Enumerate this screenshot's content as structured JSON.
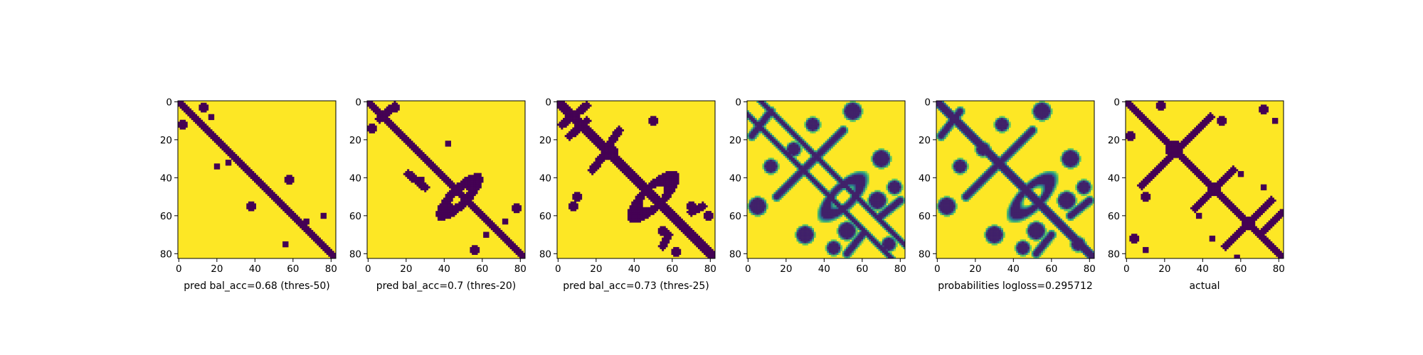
{
  "chart_data": [
    {
      "type": "heatmap",
      "mode": "binary",
      "xlabel": "pred bal_acc=0.68 (thres-50)",
      "xticks": [
        0,
        20,
        40,
        60,
        80
      ],
      "yticks": [
        0,
        20,
        40,
        60,
        80
      ],
      "xlim": [
        0,
        82
      ],
      "ylim": [
        82,
        0
      ],
      "colors": {
        "low": "#440154",
        "high": "#fde725"
      },
      "features": {
        "diagonal_width": 3,
        "offdiag_lines": [],
        "loops": [],
        "arms": [],
        "blobs": [
          [
            12,
            2,
            2
          ],
          [
            3,
            13,
            2
          ],
          [
            8,
            17,
            1
          ],
          [
            34,
            20,
            1
          ],
          [
            32,
            26,
            1
          ],
          [
            55,
            38,
            2
          ],
          [
            41,
            58,
            2
          ],
          [
            63,
            67,
            1
          ],
          [
            75,
            56,
            1
          ],
          [
            60,
            76,
            1
          ]
        ]
      }
    },
    {
      "type": "heatmap",
      "mode": "binary",
      "xlabel": "pred bal_acc=0.7 (thres-20)",
      "xticks": [
        0,
        20,
        40,
        60,
        80
      ],
      "yticks": [
        0,
        20,
        40,
        60,
        80
      ],
      "xlim": [
        0,
        82
      ],
      "ylim": [
        82,
        0
      ],
      "colors": {
        "low": "#440154",
        "high": "#fde725"
      },
      "features": {
        "diagonal_width": 4,
        "offdiag_lines": [],
        "loops": [
          [
            50,
            48,
            11,
            4,
            -0.78
          ]
        ],
        "arms": [
          [
            9,
            6,
            2,
            14
          ],
          [
            38,
            21,
            45,
            30
          ]
        ],
        "blobs": [
          [
            14,
            2,
            2
          ],
          [
            3,
            14,
            2
          ],
          [
            78,
            56,
            2
          ],
          [
            56,
            78,
            2
          ],
          [
            70,
            62,
            1
          ],
          [
            63,
            72,
            1
          ],
          [
            41,
            28,
            1
          ],
          [
            22,
            42,
            1
          ]
        ]
      }
    },
    {
      "type": "heatmap",
      "mode": "binary",
      "xlabel": "pred bal_acc=0.73 (thres-25)",
      "xticks": [
        0,
        20,
        40,
        60,
        80
      ],
      "yticks": [
        0,
        20,
        40,
        60,
        80
      ],
      "xlim": [
        0,
        82
      ],
      "ylim": [
        82,
        0
      ],
      "colors": {
        "low": "#440154",
        "high": "#fde725"
      },
      "features": {
        "diagonal_width": 5,
        "offdiag_lines": [],
        "loops": [
          [
            50,
            50,
            13,
            5,
            -0.78
          ]
        ],
        "arms": [
          [
            12,
            2,
            2,
            15
          ],
          [
            18,
            6,
            10,
            15
          ],
          [
            24,
            26,
            15,
            32
          ],
          [
            28,
            24,
            36,
            18
          ],
          [
            70,
            58,
            76,
            55
          ],
          [
            58,
            70,
            55,
            76
          ]
        ],
        "blobs": [
          [
            10,
            50,
            2
          ],
          [
            50,
            10,
            2
          ],
          [
            68,
            55,
            2
          ],
          [
            55,
            70,
            2
          ],
          [
            60,
            79,
            2
          ],
          [
            79,
            62,
            2
          ],
          [
            27,
            28,
            3
          ],
          [
            55,
            8,
            2
          ]
        ]
      }
    },
    {
      "type": "heatmap",
      "mode": "prob",
      "xlabel": "",
      "xticks": [
        0,
        20,
        40,
        60,
        80
      ],
      "yticks": [
        0,
        20,
        40,
        60,
        80
      ],
      "xlim": [
        0,
        82
      ],
      "ylim": [
        82,
        0
      ],
      "colors": {
        "low": "#440154",
        "high": "#fde725"
      },
      "features": {
        "diagonal_width": 0,
        "offdiag_lines": [
          [
            -7,
            1.2
          ],
          [
            7,
            1.2
          ]
        ],
        "loops": [
          [
            50,
            50,
            12,
            5,
            -0.78
          ]
        ],
        "arms": [
          [
            5,
            12,
            18,
            2
          ],
          [
            15,
            50,
            40,
            25
          ],
          [
            50,
            15,
            25,
            40
          ],
          [
            70,
            60,
            80,
            52
          ],
          [
            60,
            70,
            52,
            80
          ]
        ],
        "blobs": [
          [
            25,
            24,
            3
          ],
          [
            55,
            5,
            4
          ],
          [
            5,
            55,
            4
          ],
          [
            68,
            52,
            4
          ],
          [
            52,
            68,
            4
          ],
          [
            75,
            74,
            3
          ],
          [
            30,
            70,
            4
          ],
          [
            70,
            30,
            4
          ],
          [
            12,
            34,
            3
          ],
          [
            34,
            12,
            3
          ],
          [
            45,
            77,
            3
          ],
          [
            77,
            45,
            3
          ]
        ]
      }
    },
    {
      "type": "heatmap",
      "mode": "prob",
      "xlabel": "probabilities logloss=0.295712",
      "xticks": [
        0,
        20,
        40,
        60,
        80
      ],
      "yticks": [
        0,
        20,
        40,
        60,
        80
      ],
      "xlim": [
        0,
        82
      ],
      "ylim": [
        82,
        0
      ],
      "colors": {
        "low": "#440154",
        "high": "#fde725"
      },
      "features": {
        "diagonal_width": 5,
        "offdiag_lines": [],
        "loops": [
          [
            50,
            50,
            12,
            5,
            -0.78
          ]
        ],
        "arms": [
          [
            5,
            12,
            18,
            2
          ],
          [
            15,
            50,
            40,
            25
          ],
          [
            50,
            15,
            25,
            40
          ],
          [
            70,
            60,
            80,
            52
          ],
          [
            60,
            70,
            52,
            80
          ]
        ],
        "blobs": [
          [
            25,
            24,
            3
          ],
          [
            55,
            5,
            4
          ],
          [
            5,
            55,
            4
          ],
          [
            68,
            52,
            4
          ],
          [
            52,
            68,
            4
          ],
          [
            75,
            74,
            3
          ],
          [
            30,
            70,
            4
          ],
          [
            70,
            30,
            4
          ],
          [
            12,
            34,
            3
          ],
          [
            34,
            12,
            3
          ],
          [
            45,
            77,
            3
          ],
          [
            77,
            45,
            3
          ]
        ]
      }
    },
    {
      "type": "heatmap",
      "mode": "binary",
      "xlabel": "actual",
      "xticks": [
        0,
        20,
        40,
        60,
        80
      ],
      "yticks": [
        0,
        20,
        40,
        60,
        80
      ],
      "xlim": [
        0,
        82
      ],
      "ylim": [
        82,
        0
      ],
      "colors": {
        "low": "#440154",
        "high": "#fde725"
      },
      "features": {
        "diagonal_width": 4,
        "offdiag_lines": [],
        "loops": [],
        "arms": [
          [
            26,
            26,
            8,
            44
          ],
          [
            26,
            26,
            44,
            8
          ],
          [
            46,
            46,
            36,
            56
          ],
          [
            46,
            46,
            56,
            36
          ],
          [
            64,
            64,
            52,
            76
          ],
          [
            64,
            64,
            76,
            52
          ],
          [
            70,
            70,
            60,
            80
          ]
        ],
        "blobs": [
          [
            25,
            25,
            4
          ],
          [
            46,
            46,
            3
          ],
          [
            64,
            64,
            3
          ],
          [
            10,
            50,
            2
          ],
          [
            50,
            10,
            2
          ],
          [
            72,
            4,
            2
          ],
          [
            4,
            72,
            2
          ],
          [
            60,
            38,
            1
          ],
          [
            38,
            60,
            1
          ],
          [
            10,
            78,
            1
          ],
          [
            78,
            10,
            1
          ],
          [
            2,
            18,
            2
          ],
          [
            18,
            2,
            2
          ],
          [
            82,
            58,
            1
          ],
          [
            58,
            82,
            1
          ],
          [
            72,
            45,
            1
          ],
          [
            45,
            72,
            1
          ]
        ]
      }
    }
  ]
}
